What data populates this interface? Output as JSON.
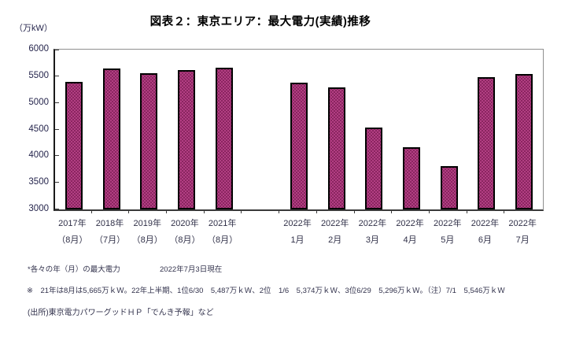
{
  "header": {
    "title": "図表２：東京エリア：最大電力(実績)推移",
    "y_unit": "（万kW）"
  },
  "chart_data": {
    "type": "bar",
    "title": "図表２：東京エリア：最大電力(実績)推移",
    "ylabel": "（万kW）",
    "xlabel": "",
    "ylim": [
      3000,
      6000
    ],
    "yticks": [
      3000,
      3500,
      4000,
      4500,
      5000,
      5500,
      6000
    ],
    "grid": false,
    "legend": "none",
    "colors": {
      "bar_fill": "#8a2560",
      "bar_dot": "#c0488f",
      "bar_border": "#000000",
      "frame": "#909090",
      "axis": "#3a3a3a",
      "tick_label": "#26264d",
      "bar_reference": "#993366"
    },
    "categories": [
      {
        "line1": "2017年",
        "line2": "（8月）",
        "value": 5390
      },
      {
        "line1": "2018年",
        "line2": "（7月）",
        "value": 5650
      },
      {
        "line1": "2019年",
        "line2": "（8月）",
        "value": 5550
      },
      {
        "line1": "2020年",
        "line2": "（8月）",
        "value": 5610
      },
      {
        "line1": "2021年",
        "line2": "（8月）",
        "value": 5665
      },
      {
        "line1": "",
        "line2": "",
        "value": null
      },
      {
        "line1": "2022年",
        "line2": "1月",
        "value": 5374
      },
      {
        "line1": "2022年",
        "line2": "2月",
        "value": 5290
      },
      {
        "line1": "2022年",
        "line2": "3月",
        "value": 4530
      },
      {
        "line1": "2022年",
        "line2": "4月",
        "value": 4170
      },
      {
        "line1": "2022年",
        "line2": "5月",
        "value": 3820
      },
      {
        "line1": "2022年",
        "line2": "6月",
        "value": 5487
      },
      {
        "line1": "2022年",
        "line2": "7月",
        "value": 5546
      }
    ]
  },
  "footnotes": {
    "note1": "*各々の年（月）の最大電力",
    "note1_date": "2022年7月3日現在",
    "note2": "※　21年は8月は5,665万ｋＷ。22年上半期、1位6/30　5,487万ｋＷ、2位　1/6　5,374万ｋＷ、3位6/29　5,296万ｋＷ。（注）7/1　5,546万ｋＷ",
    "source": "(出所)東京電力パワーグッドＨＰ「でんき予報」など"
  }
}
